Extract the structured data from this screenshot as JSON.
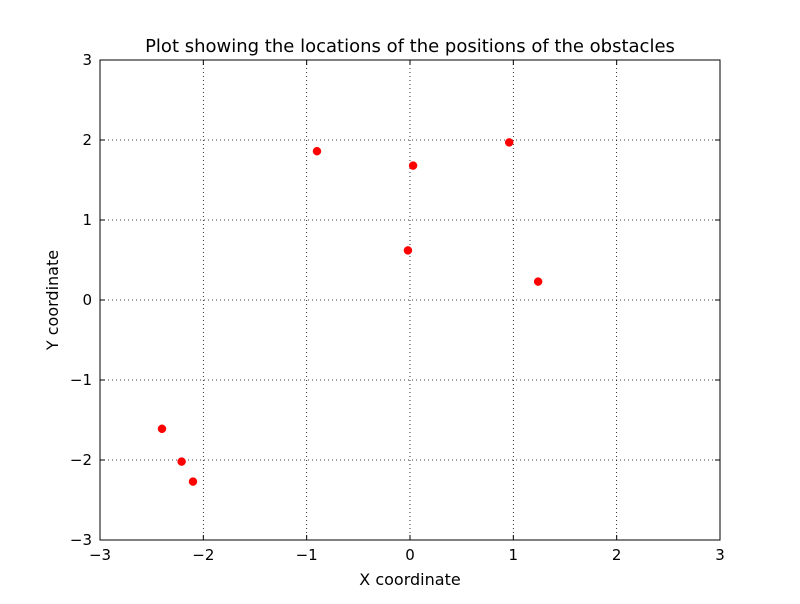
{
  "chart_data": {
    "type": "scatter",
    "title": "Plot showing the locations of the positions of the obstacles",
    "xlabel": "X coordinate",
    "ylabel": "Y coordinate",
    "xlim": [
      -3,
      3
    ],
    "ylim": [
      -3,
      3
    ],
    "xticks": [
      -3,
      -2,
      -1,
      0,
      1,
      2,
      3
    ],
    "yticks": [
      -3,
      -2,
      -1,
      0,
      1,
      2,
      3
    ],
    "xtick_labels": [
      "−3",
      "−2",
      "−1",
      "0",
      "1",
      "2",
      "3"
    ],
    "ytick_labels": [
      "−3",
      "−2",
      "−1",
      "0",
      "1",
      "2",
      "3"
    ],
    "grid": true,
    "marker_color": "#ff0000",
    "series": [
      {
        "points": [
          {
            "x": -0.9,
            "y": 1.86
          },
          {
            "x": 0.03,
            "y": 1.68
          },
          {
            "x": 0.96,
            "y": 1.97
          },
          {
            "x": -0.02,
            "y": 0.62
          },
          {
            "x": 1.24,
            "y": 0.23
          },
          {
            "x": -2.4,
            "y": -1.61
          },
          {
            "x": -2.21,
            "y": -2.02
          },
          {
            "x": -2.1,
            "y": -2.27
          }
        ]
      }
    ]
  }
}
